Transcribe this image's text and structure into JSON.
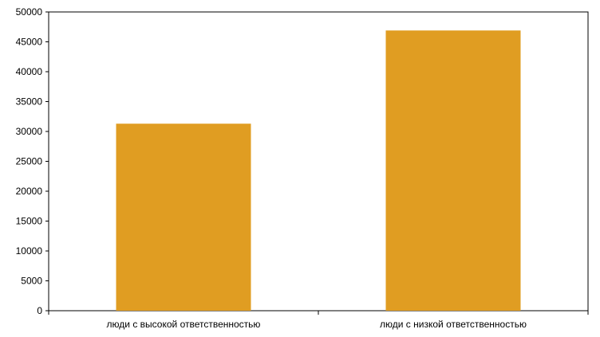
{
  "chart_data": {
    "type": "bar",
    "categories": [
      "люди с высокой ответственностью",
      "люди с низкой ответственностью"
    ],
    "values": [
      31300,
      46900
    ],
    "title": "",
    "xlabel": "",
    "ylabel": "",
    "ylim": [
      0,
      50000
    ],
    "yticks": [
      "0",
      "5000",
      "10000",
      "15000",
      "20000",
      "25000",
      "30000",
      "35000",
      "40000",
      "45000",
      "50000"
    ],
    "grid": false,
    "legend": "none",
    "bar_color": "#e09d22",
    "axis_color": "#000000"
  }
}
